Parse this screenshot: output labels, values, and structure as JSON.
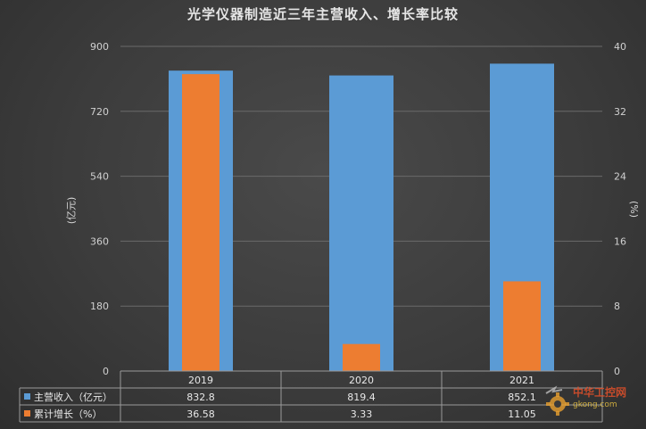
{
  "chart_data": {
    "type": "bar",
    "title": "光学仪器制造近三年主营收入、增长率比较",
    "categories": [
      "2019",
      "2020",
      "2021"
    ],
    "series": [
      {
        "name": "主营收入（亿元）",
        "values": [
          832.8,
          819.4,
          852.1
        ],
        "axis": "left",
        "color": "#5b9bd5",
        "value_labels": [
          "832.8",
          "819.4",
          "852.1"
        ]
      },
      {
        "name": "累计增长（%）",
        "values": [
          36.58,
          3.33,
          11.05
        ],
        "axis": "right",
        "color": "#ed7d31",
        "value_labels": [
          "36.58",
          "3.33",
          "11.05"
        ]
      }
    ],
    "ylabel": "(亿元)",
    "y2label": "(%)",
    "ylim": [
      0,
      900
    ],
    "y2lim": [
      0,
      40
    ],
    "yticks": [
      "0",
      "180",
      "360",
      "540",
      "720",
      "900"
    ],
    "y2ticks": [
      "0",
      "8",
      "16",
      "24",
      "32",
      "40"
    ],
    "grid": true,
    "legend": "data-table"
  },
  "watermark": {
    "text_cn": "中华工控网",
    "url": "gkong.com"
  }
}
